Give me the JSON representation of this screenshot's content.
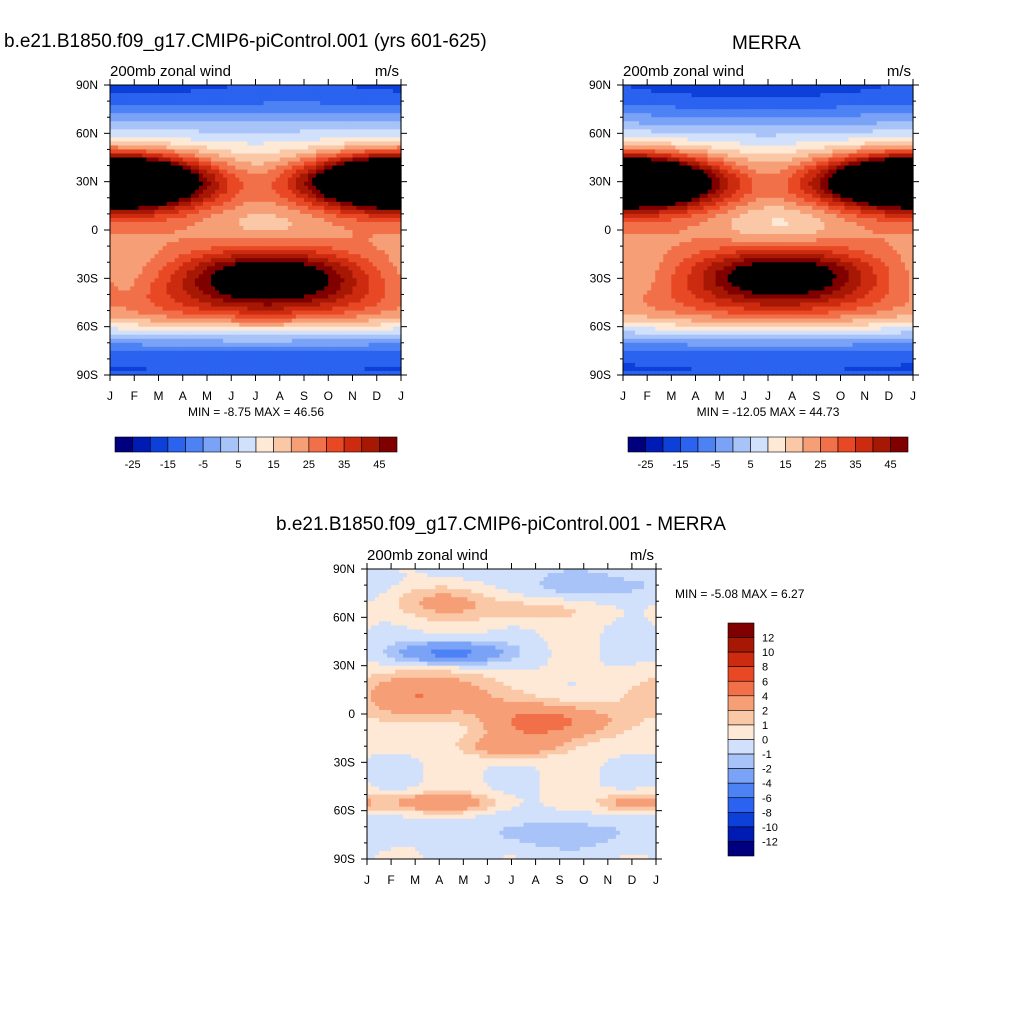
{
  "figure": {
    "left_title": "b.e21.B1850.f09_g17.CMIP6-piControl.001 (yrs 601-625)",
    "right_title": "MERRA",
    "bottom_title": "b.e21.B1850.f09_g17.CMIP6-piControl.001 - MERRA"
  },
  "chart_data": [
    {
      "id": "model",
      "type": "heatmap",
      "subtitle_left": "200mb zonal wind",
      "subtitle_right": "m/s",
      "x_ticks": [
        "J",
        "F",
        "M",
        "A",
        "M",
        "J",
        "J",
        "A",
        "S",
        "O",
        "N",
        "D",
        "J"
      ],
      "y_ticks": [
        "90N",
        "60N",
        "30N",
        "0",
        "30S",
        "60S",
        "90S"
      ],
      "stats": "MIN =  -8.75 MAX =  46.56",
      "min": -8.75,
      "max": 46.56,
      "levels": [
        -30,
        -25,
        -20,
        -15,
        -10,
        -5,
        0,
        5,
        10,
        15,
        20,
        25,
        30,
        35,
        40,
        45
      ],
      "colorbar_labels": [
        "-25",
        "-15",
        "-5",
        "5",
        "15",
        "25",
        "35",
        "45"
      ],
      "colorbar_colors": [
        "#00007f",
        "#001bb3",
        "#0d3fd9",
        "#2b63f0",
        "#4d82f5",
        "#7aa3f7",
        "#a8c3f8",
        "#d1e0fb",
        "#fde9d6",
        "#fbc8a7",
        "#f69e76",
        "#f27049",
        "#e94825",
        "#cc2b10",
        "#a71804",
        "#800000"
      ],
      "jets": [
        {
          "month": 0.3,
          "lat": 30,
          "peak": 46,
          "wm": 2.5,
          "wl": 11
        },
        {
          "month": 11.8,
          "lat": 31,
          "peak": 40,
          "wm": 2.5,
          "wl": 11
        },
        {
          "month": 6.6,
          "lat": -29,
          "peak": 46,
          "wm": 3.0,
          "wl": 12
        },
        {
          "month": 6.0,
          "lat": -50,
          "peak": 32,
          "wm": 9.0,
          "wl": 13
        },
        {
          "month": 6.5,
          "lat": 5,
          "peak": -8,
          "wm": 2.0,
          "wl": 10
        },
        {
          "month": 1.5,
          "lat": 80,
          "peak": -2,
          "wm": 3.5,
          "wl": 10
        }
      ]
    },
    {
      "id": "merra",
      "type": "heatmap",
      "subtitle_left": "200mb zonal wind",
      "subtitle_right": "m/s",
      "x_ticks": [
        "J",
        "F",
        "M",
        "A",
        "M",
        "J",
        "J",
        "A",
        "S",
        "O",
        "N",
        "D",
        "J"
      ],
      "y_ticks": [
        "90N",
        "60N",
        "30N",
        "0",
        "30S",
        "60S",
        "90S"
      ],
      "stats": "MIN =  -12.05 MAX =  44.73",
      "min": -12.05,
      "max": 44.73,
      "levels": [
        -30,
        -25,
        -20,
        -15,
        -10,
        -5,
        0,
        5,
        10,
        15,
        20,
        25,
        30,
        35,
        40,
        45
      ],
      "colorbar_labels": [
        "-25",
        "-15",
        "-5",
        "5",
        "15",
        "25",
        "35",
        "45"
      ],
      "colorbar_colors": [
        "#00007f",
        "#001bb3",
        "#0d3fd9",
        "#2b63f0",
        "#4d82f5",
        "#7aa3f7",
        "#a8c3f8",
        "#d1e0fb",
        "#fde9d6",
        "#fbc8a7",
        "#f69e76",
        "#f27049",
        "#e94825",
        "#cc2b10",
        "#a71804",
        "#800000"
      ],
      "jets": [
        {
          "month": 0.5,
          "lat": 30,
          "peak": 42,
          "wm": 2.5,
          "wl": 11
        },
        {
          "month": 11.6,
          "lat": 31,
          "peak": 40,
          "wm": 2.5,
          "wl": 11
        },
        {
          "month": 6.6,
          "lat": -28,
          "peak": 44,
          "wm": 3.0,
          "wl": 12
        },
        {
          "month": 6.0,
          "lat": -50,
          "peak": 30,
          "wm": 9.0,
          "wl": 13
        },
        {
          "month": 6.5,
          "lat": 5,
          "peak": -12,
          "wm": 2.0,
          "wl": 10
        },
        {
          "month": 5.5,
          "lat": 75,
          "peak": -4,
          "wm": 4.0,
          "wl": 12
        }
      ]
    },
    {
      "id": "diff",
      "type": "heatmap",
      "subtitle_left": "200mb zonal wind",
      "subtitle_right": "m/s",
      "x_ticks": [
        "J",
        "F",
        "M",
        "A",
        "M",
        "J",
        "J",
        "A",
        "S",
        "O",
        "N",
        "D",
        "J"
      ],
      "y_ticks": [
        "90N",
        "60N",
        "30N",
        "0",
        "30S",
        "60S",
        "90S"
      ],
      "stats": "MIN =  -5.08 MAX =   6.27",
      "min": -5.08,
      "max": 6.27,
      "levels": [
        -12,
        -10,
        -8,
        -6,
        -4,
        -2,
        -1,
        0,
        1,
        2,
        4,
        6,
        8,
        10,
        12
      ],
      "colorbar_labels": [
        "12",
        "10",
        "8",
        "6",
        "4",
        "2",
        "1",
        "0",
        "-1",
        "-2",
        "-4",
        "-6",
        "-8",
        "-10",
        "-12"
      ],
      "colorbar_colors": [
        "#800000",
        "#a71804",
        "#cc2b10",
        "#e94825",
        "#f27049",
        "#f69e76",
        "#fbc8a7",
        "#fde9d6",
        "#d1e0fb",
        "#a8c3f8",
        "#7aa3f7",
        "#4d82f5",
        "#2b63f0",
        "#0d3fd9",
        "#001bb3",
        "#00007f"
      ],
      "jets": [
        {
          "month": 3.0,
          "lat": 70,
          "peak": 2.5,
          "wm": 1.5,
          "wl": 8
        },
        {
          "month": 7.0,
          "lat": 65,
          "peak": 1.5,
          "wm": 2.0,
          "wl": 6
        },
        {
          "month": 3.5,
          "lat": 38,
          "peak": -5,
          "wm": 1.5,
          "wl": 5
        },
        {
          "month": 2.5,
          "lat": 12,
          "peak": 4,
          "wm": 2.0,
          "wl": 10
        },
        {
          "month": 7.5,
          "lat": -5,
          "peak": 5,
          "wm": 1.8,
          "wl": 8
        },
        {
          "month": 6.0,
          "lat": -20,
          "peak": 3,
          "wm": 1.5,
          "wl": 5
        },
        {
          "month": 3.0,
          "lat": -55,
          "peak": 4,
          "wm": 1.5,
          "wl": 4
        },
        {
          "month": 11.0,
          "lat": -55,
          "peak": 3,
          "wm": 1.0,
          "wl": 4
        },
        {
          "month": 8.0,
          "lat": -75,
          "peak": -1.5,
          "wm": 3.0,
          "wl": 8
        },
        {
          "month": 9.5,
          "lat": 80,
          "peak": -1.5,
          "wm": 3.0,
          "wl": 8
        }
      ]
    }
  ]
}
